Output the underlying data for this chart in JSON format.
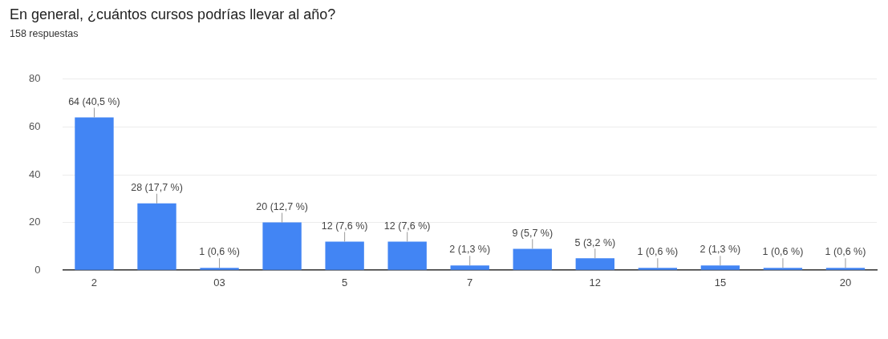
{
  "chart_data": {
    "type": "bar",
    "title": "En general, ¿cuántos cursos podrías llevar al año?",
    "subtitle": "158 respuestas",
    "categories": [
      "2",
      null,
      "03",
      null,
      "5",
      null,
      "7",
      null,
      "12",
      null,
      "15",
      null,
      "20"
    ],
    "values": [
      64,
      28,
      1,
      20,
      12,
      12,
      2,
      9,
      5,
      1,
      2,
      1,
      1
    ],
    "value_labels": [
      "64 (40,5 %)",
      "28 (17,7 %)",
      "1 (0,6 %)",
      "20 (12,7 %)",
      "12 (7,6 %)",
      "12 (7,6 %)",
      "2 (1,3 %)",
      "9 (5,7 %)",
      "5 (3,2 %)",
      "1 (0,6 %)",
      "2 (1,3 %)",
      "1 (0,6 %)",
      "1 (0,6 %)"
    ],
    "color": "#4285f4",
    "ylim": [
      0,
      80
    ],
    "yticks": [
      0,
      20,
      40,
      60,
      80
    ],
    "grid": "y",
    "legend": false
  }
}
